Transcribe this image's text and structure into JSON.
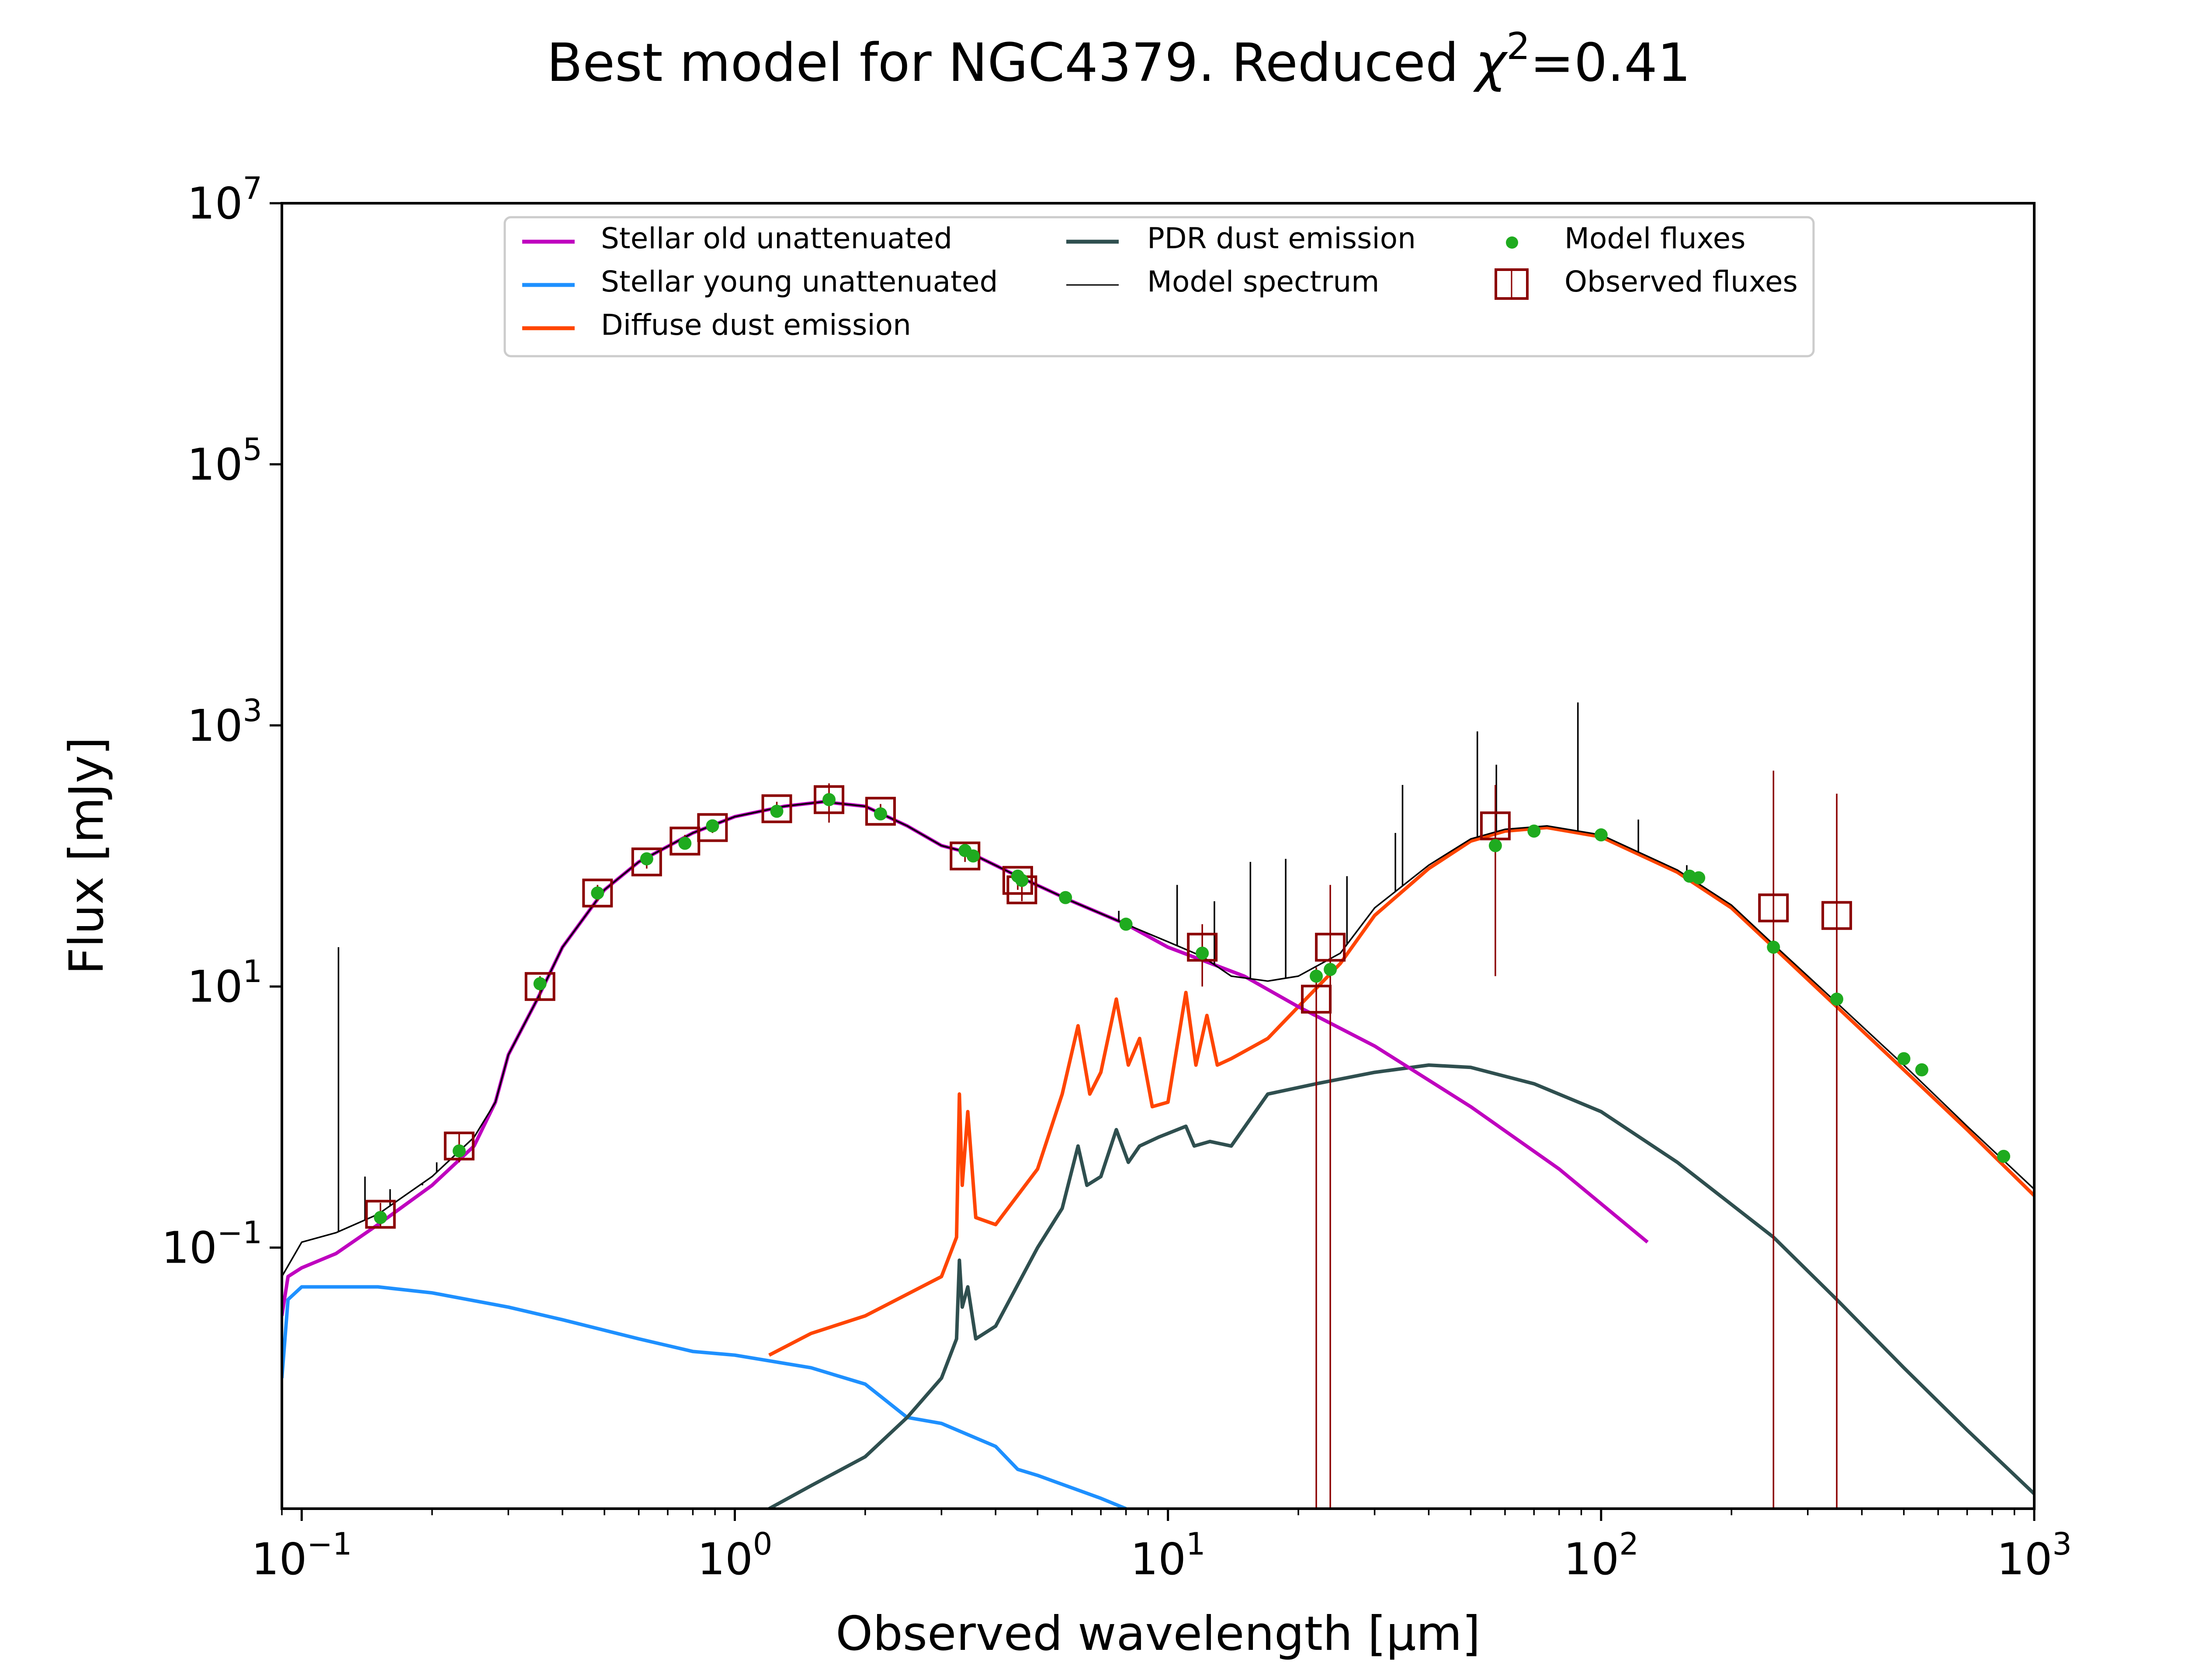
{
  "chart_data": {
    "type": "line",
    "title": "Best model for NGC4379. Reduced χ²=0.41",
    "title_main": "Best model for NGC4379. Reduced ",
    "title_chi": "χ",
    "title_sup": "2",
    "title_tail": "=0.41",
    "xlabel": "Observed wavelength [μm]",
    "ylabel": "Flux [mJy]",
    "xscale": "log",
    "yscale": "log",
    "xlim": [
      0.09,
      1000
    ],
    "ylim": [
      0.001,
      10000000
    ],
    "x_ticks": [
      {
        "value": 0.1,
        "base": "10",
        "exp": "−1"
      },
      {
        "value": 1,
        "base": "10",
        "exp": "0"
      },
      {
        "value": 10,
        "base": "10",
        "exp": "1"
      },
      {
        "value": 100,
        "base": "10",
        "exp": "2"
      },
      {
        "value": 1000,
        "base": "10",
        "exp": "3"
      }
    ],
    "y_ticks": [
      {
        "value": 0.1,
        "base": "10",
        "exp": "−1"
      },
      {
        "value": 10,
        "base": "10",
        "exp": "1"
      },
      {
        "value": 1000,
        "base": "10",
        "exp": "3"
      },
      {
        "value": 100000,
        "base": "10",
        "exp": "5"
      },
      {
        "value": 10000000,
        "base": "10",
        "exp": "7"
      }
    ],
    "grid": false,
    "legend_position": "top-center",
    "series": [
      {
        "name": "Stellar old unattenuated",
        "color": "#bf00bf",
        "kind": "line",
        "points": [
          [
            0.09,
            0.03
          ],
          [
            0.093,
            0.06
          ],
          [
            0.1,
            0.07
          ],
          [
            0.12,
            0.09
          ],
          [
            0.15,
            0.15
          ],
          [
            0.2,
            0.3
          ],
          [
            0.25,
            0.6
          ],
          [
            0.28,
            1.3
          ],
          [
            0.3,
            3
          ],
          [
            0.35,
            8
          ],
          [
            0.4,
            20
          ],
          [
            0.5,
            55
          ],
          [
            0.6,
            90
          ],
          [
            0.8,
            150
          ],
          [
            1.0,
            200
          ],
          [
            1.3,
            240
          ],
          [
            1.6,
            260
          ],
          [
            2.0,
            240
          ],
          [
            2.5,
            170
          ],
          [
            3.0,
            120
          ],
          [
            3.5,
            105
          ],
          [
            4.5,
            70
          ],
          [
            6,
            45
          ],
          [
            8,
            30
          ],
          [
            10,
            20
          ],
          [
            15,
            12
          ],
          [
            20,
            7
          ],
          [
            30,
            3.5
          ],
          [
            50,
            1.2
          ],
          [
            80,
            0.4
          ],
          [
            128,
            0.11
          ]
        ]
      },
      {
        "name": "Stellar young unattenuated",
        "color": "#1e90ff",
        "kind": "line",
        "points": [
          [
            0.09,
            0.01
          ],
          [
            0.093,
            0.04
          ],
          [
            0.1,
            0.05
          ],
          [
            0.15,
            0.05
          ],
          [
            0.2,
            0.045
          ],
          [
            0.3,
            0.035
          ],
          [
            0.4,
            0.028
          ],
          [
            0.6,
            0.02
          ],
          [
            0.8,
            0.016
          ],
          [
            1.0,
            0.015
          ],
          [
            1.5,
            0.012
          ],
          [
            2.0,
            0.009
          ],
          [
            2.5,
            0.005
          ],
          [
            3.0,
            0.0045
          ],
          [
            4.0,
            0.003
          ],
          [
            4.5,
            0.002
          ],
          [
            5,
            0.0018
          ],
          [
            7,
            0.0012
          ],
          [
            8,
            0.001
          ]
        ]
      },
      {
        "name": "Diffuse dust emission",
        "color": "#ff4500",
        "kind": "line",
        "points": [
          [
            1.2,
            0.015
          ],
          [
            1.5,
            0.022
          ],
          [
            2.0,
            0.03
          ],
          [
            3.0,
            0.06
          ],
          [
            3.25,
            0.12
          ],
          [
            3.3,
            1.5
          ],
          [
            3.35,
            0.3
          ],
          [
            3.45,
            1.1
          ],
          [
            3.6,
            0.17
          ],
          [
            4,
            0.15
          ],
          [
            5,
            0.4
          ],
          [
            5.7,
            1.5
          ],
          [
            6.2,
            5
          ],
          [
            6.6,
            1.5
          ],
          [
            7.0,
            2.2
          ],
          [
            7.6,
            8
          ],
          [
            8.1,
            2.5
          ],
          [
            8.6,
            4
          ],
          [
            9.2,
            1.2
          ],
          [
            10,
            1.3
          ],
          [
            11.0,
            9
          ],
          [
            11.6,
            2.5
          ],
          [
            12.3,
            6
          ],
          [
            13,
            2.5
          ],
          [
            14,
            2.8
          ],
          [
            17,
            4
          ],
          [
            20,
            7
          ],
          [
            25,
            15
          ],
          [
            30,
            35
          ],
          [
            40,
            80
          ],
          [
            50,
            130
          ],
          [
            60,
            155
          ],
          [
            75,
            165
          ],
          [
            100,
            140
          ],
          [
            150,
            75
          ],
          [
            200,
            40
          ],
          [
            250,
            20
          ],
          [
            350,
            7
          ],
          [
            500,
            2.3
          ],
          [
            700,
            0.8
          ],
          [
            1000,
            0.25
          ]
        ]
      },
      {
        "name": "PDR dust emission",
        "color": "#2f4f4f",
        "kind": "line",
        "points": [
          [
            1.2,
            0.001
          ],
          [
            1.5,
            0.0015
          ],
          [
            2.0,
            0.0025
          ],
          [
            2.5,
            0.005
          ],
          [
            3.0,
            0.01
          ],
          [
            3.25,
            0.02
          ],
          [
            3.3,
            0.08
          ],
          [
            3.35,
            0.035
          ],
          [
            3.45,
            0.05
          ],
          [
            3.6,
            0.02
          ],
          [
            4,
            0.025
          ],
          [
            5,
            0.1
          ],
          [
            5.7,
            0.2
          ],
          [
            6.2,
            0.6
          ],
          [
            6.5,
            0.3
          ],
          [
            7.0,
            0.35
          ],
          [
            7.6,
            0.8
          ],
          [
            8.1,
            0.45
          ],
          [
            8.6,
            0.6
          ],
          [
            9.5,
            0.7
          ],
          [
            11,
            0.85
          ],
          [
            11.5,
            0.6
          ],
          [
            12.5,
            0.65
          ],
          [
            14,
            0.6
          ],
          [
            17,
            1.5
          ],
          [
            22,
            1.8
          ],
          [
            30,
            2.2
          ],
          [
            40,
            2.5
          ],
          [
            50,
            2.4
          ],
          [
            70,
            1.8
          ],
          [
            100,
            1.1
          ],
          [
            150,
            0.45
          ],
          [
            250,
            0.12
          ],
          [
            350,
            0.04
          ],
          [
            500,
            0.012
          ],
          [
            700,
            0.004
          ],
          [
            1000,
            0.0013
          ]
        ]
      },
      {
        "name": "Model spectrum",
        "color": "#000000",
        "kind": "thin-line",
        "points": [
          [
            0.09,
            0.06
          ],
          [
            0.1,
            0.11
          ],
          [
            0.12,
            0.13
          ],
          [
            0.15,
            0.18
          ],
          [
            0.2,
            0.35
          ],
          [
            0.25,
            0.7
          ],
          [
            0.28,
            1.3
          ],
          [
            0.3,
            3
          ],
          [
            0.35,
            8
          ],
          [
            0.4,
            20
          ],
          [
            0.5,
            55
          ],
          [
            0.6,
            90
          ],
          [
            0.8,
            150
          ],
          [
            1.0,
            200
          ],
          [
            1.3,
            240
          ],
          [
            1.6,
            260
          ],
          [
            2.0,
            240
          ],
          [
            2.5,
            170
          ],
          [
            3.0,
            120
          ],
          [
            3.5,
            105
          ],
          [
            4.5,
            70
          ],
          [
            6,
            45
          ],
          [
            8,
            30
          ],
          [
            10,
            22
          ],
          [
            12,
            17
          ],
          [
            14,
            12
          ],
          [
            17,
            11
          ],
          [
            20,
            12
          ],
          [
            25,
            18
          ],
          [
            30,
            40
          ],
          [
            40,
            85
          ],
          [
            50,
            135
          ],
          [
            60,
            160
          ],
          [
            75,
            170
          ],
          [
            100,
            145
          ],
          [
            150,
            78
          ],
          [
            200,
            42
          ],
          [
            250,
            21
          ],
          [
            350,
            7.5
          ],
          [
            500,
            2.5
          ],
          [
            700,
            0.85
          ],
          [
            1000,
            0.28
          ]
        ]
      },
      {
        "name": "Model fluxes",
        "color": "#1fab1f",
        "kind": "points",
        "points": [
          [
            0.152,
            0.17
          ],
          [
            0.231,
            0.55
          ],
          [
            0.355,
            10.5
          ],
          [
            0.482,
            52
          ],
          [
            0.626,
            95
          ],
          [
            0.767,
            125
          ],
          [
            0.888,
            170
          ],
          [
            1.25,
            220
          ],
          [
            1.65,
            270
          ],
          [
            2.17,
            210
          ],
          [
            3.4,
            110
          ],
          [
            3.55,
            100
          ],
          [
            4.5,
            70
          ],
          [
            4.6,
            65
          ],
          [
            5.8,
            48
          ],
          [
            8,
            30
          ],
          [
            12,
            18
          ],
          [
            22,
            12
          ],
          [
            23.7,
            13.5
          ],
          [
            57,
            120
          ],
          [
            70,
            155
          ],
          [
            100,
            145
          ],
          [
            160,
            70
          ],
          [
            168,
            68
          ],
          [
            250,
            20
          ],
          [
            350,
            8
          ],
          [
            500,
            2.8
          ],
          [
            550,
            2.3
          ],
          [
            850,
            0.5
          ]
        ]
      },
      {
        "name": "Observed fluxes",
        "color": "#8b0000",
        "kind": "squares",
        "points": [
          {
            "x": 0.152,
            "y": 0.18,
            "err": [
              0.14,
              0.22
            ]
          },
          {
            "x": 0.231,
            "y": 0.6,
            "err": [
              0.45,
              0.75
            ]
          },
          {
            "x": 0.355,
            "y": 10,
            "err": [
              8,
              12
            ]
          },
          {
            "x": 0.482,
            "y": 52,
            "err": [
              45,
              60
            ]
          },
          {
            "x": 0.626,
            "y": 90,
            "err": [
              80,
              100
            ]
          },
          {
            "x": 0.767,
            "y": 130,
            "err": [
              115,
              145
            ]
          },
          {
            "x": 0.888,
            "y": 165,
            "err": [
              150,
              180
            ]
          },
          {
            "x": 1.25,
            "y": 230,
            "err": [
              200,
              260
            ]
          },
          {
            "x": 1.65,
            "y": 270,
            "err": [
              180,
              360
            ]
          },
          {
            "x": 2.17,
            "y": 220,
            "err": [
              190,
              250
            ]
          },
          {
            "x": 3.4,
            "y": 100,
            "err": [
              90,
              110
            ]
          },
          {
            "x": 4.5,
            "y": 65,
            "err": [
              55,
              75
            ]
          },
          {
            "x": 4.6,
            "y": 55,
            "err": [
              45,
              65
            ]
          },
          {
            "x": 12,
            "y": 20,
            "err": [
              10,
              30
            ]
          },
          {
            "x": 22,
            "y": 8,
            "err": [
              0.001,
              14
            ]
          },
          {
            "x": 23.7,
            "y": 20,
            "err": [
              0.001,
              60
            ]
          },
          {
            "x": 57,
            "y": 170,
            "err": [
              12,
              350
            ]
          },
          {
            "x": 250,
            "y": 40,
            "err": [
              0.001,
              450
            ]
          },
          {
            "x": 350,
            "y": 35,
            "err": [
              0.001,
              300
            ]
          }
        ]
      }
    ],
    "emission_lines": [
      {
        "x": 0.1216,
        "peak": 20
      },
      {
        "x": 0.14,
        "peak": 0.35
      },
      {
        "x": 0.16,
        "peak": 0.28
      },
      {
        "x": 0.19,
        "peak": 0.3
      },
      {
        "x": 0.205,
        "peak": 0.45
      },
      {
        "x": 0.237,
        "peak": 0.6
      },
      {
        "x": 7.7,
        "peak": 38
      },
      {
        "x": 10.5,
        "peak": 60
      },
      {
        "x": 12.8,
        "peak": 45
      },
      {
        "x": 15.5,
        "peak": 90
      },
      {
        "x": 18.7,
        "peak": 95
      },
      {
        "x": 25.9,
        "peak": 70
      },
      {
        "x": 33.5,
        "peak": 150
      },
      {
        "x": 34.8,
        "peak": 350
      },
      {
        "x": 51.8,
        "peak": 900
      },
      {
        "x": 57.3,
        "peak": 500
      },
      {
        "x": 88.4,
        "peak": 1500
      },
      {
        "x": 121.9,
        "peak": 190
      },
      {
        "x": 157.7,
        "peak": 85
      }
    ]
  }
}
